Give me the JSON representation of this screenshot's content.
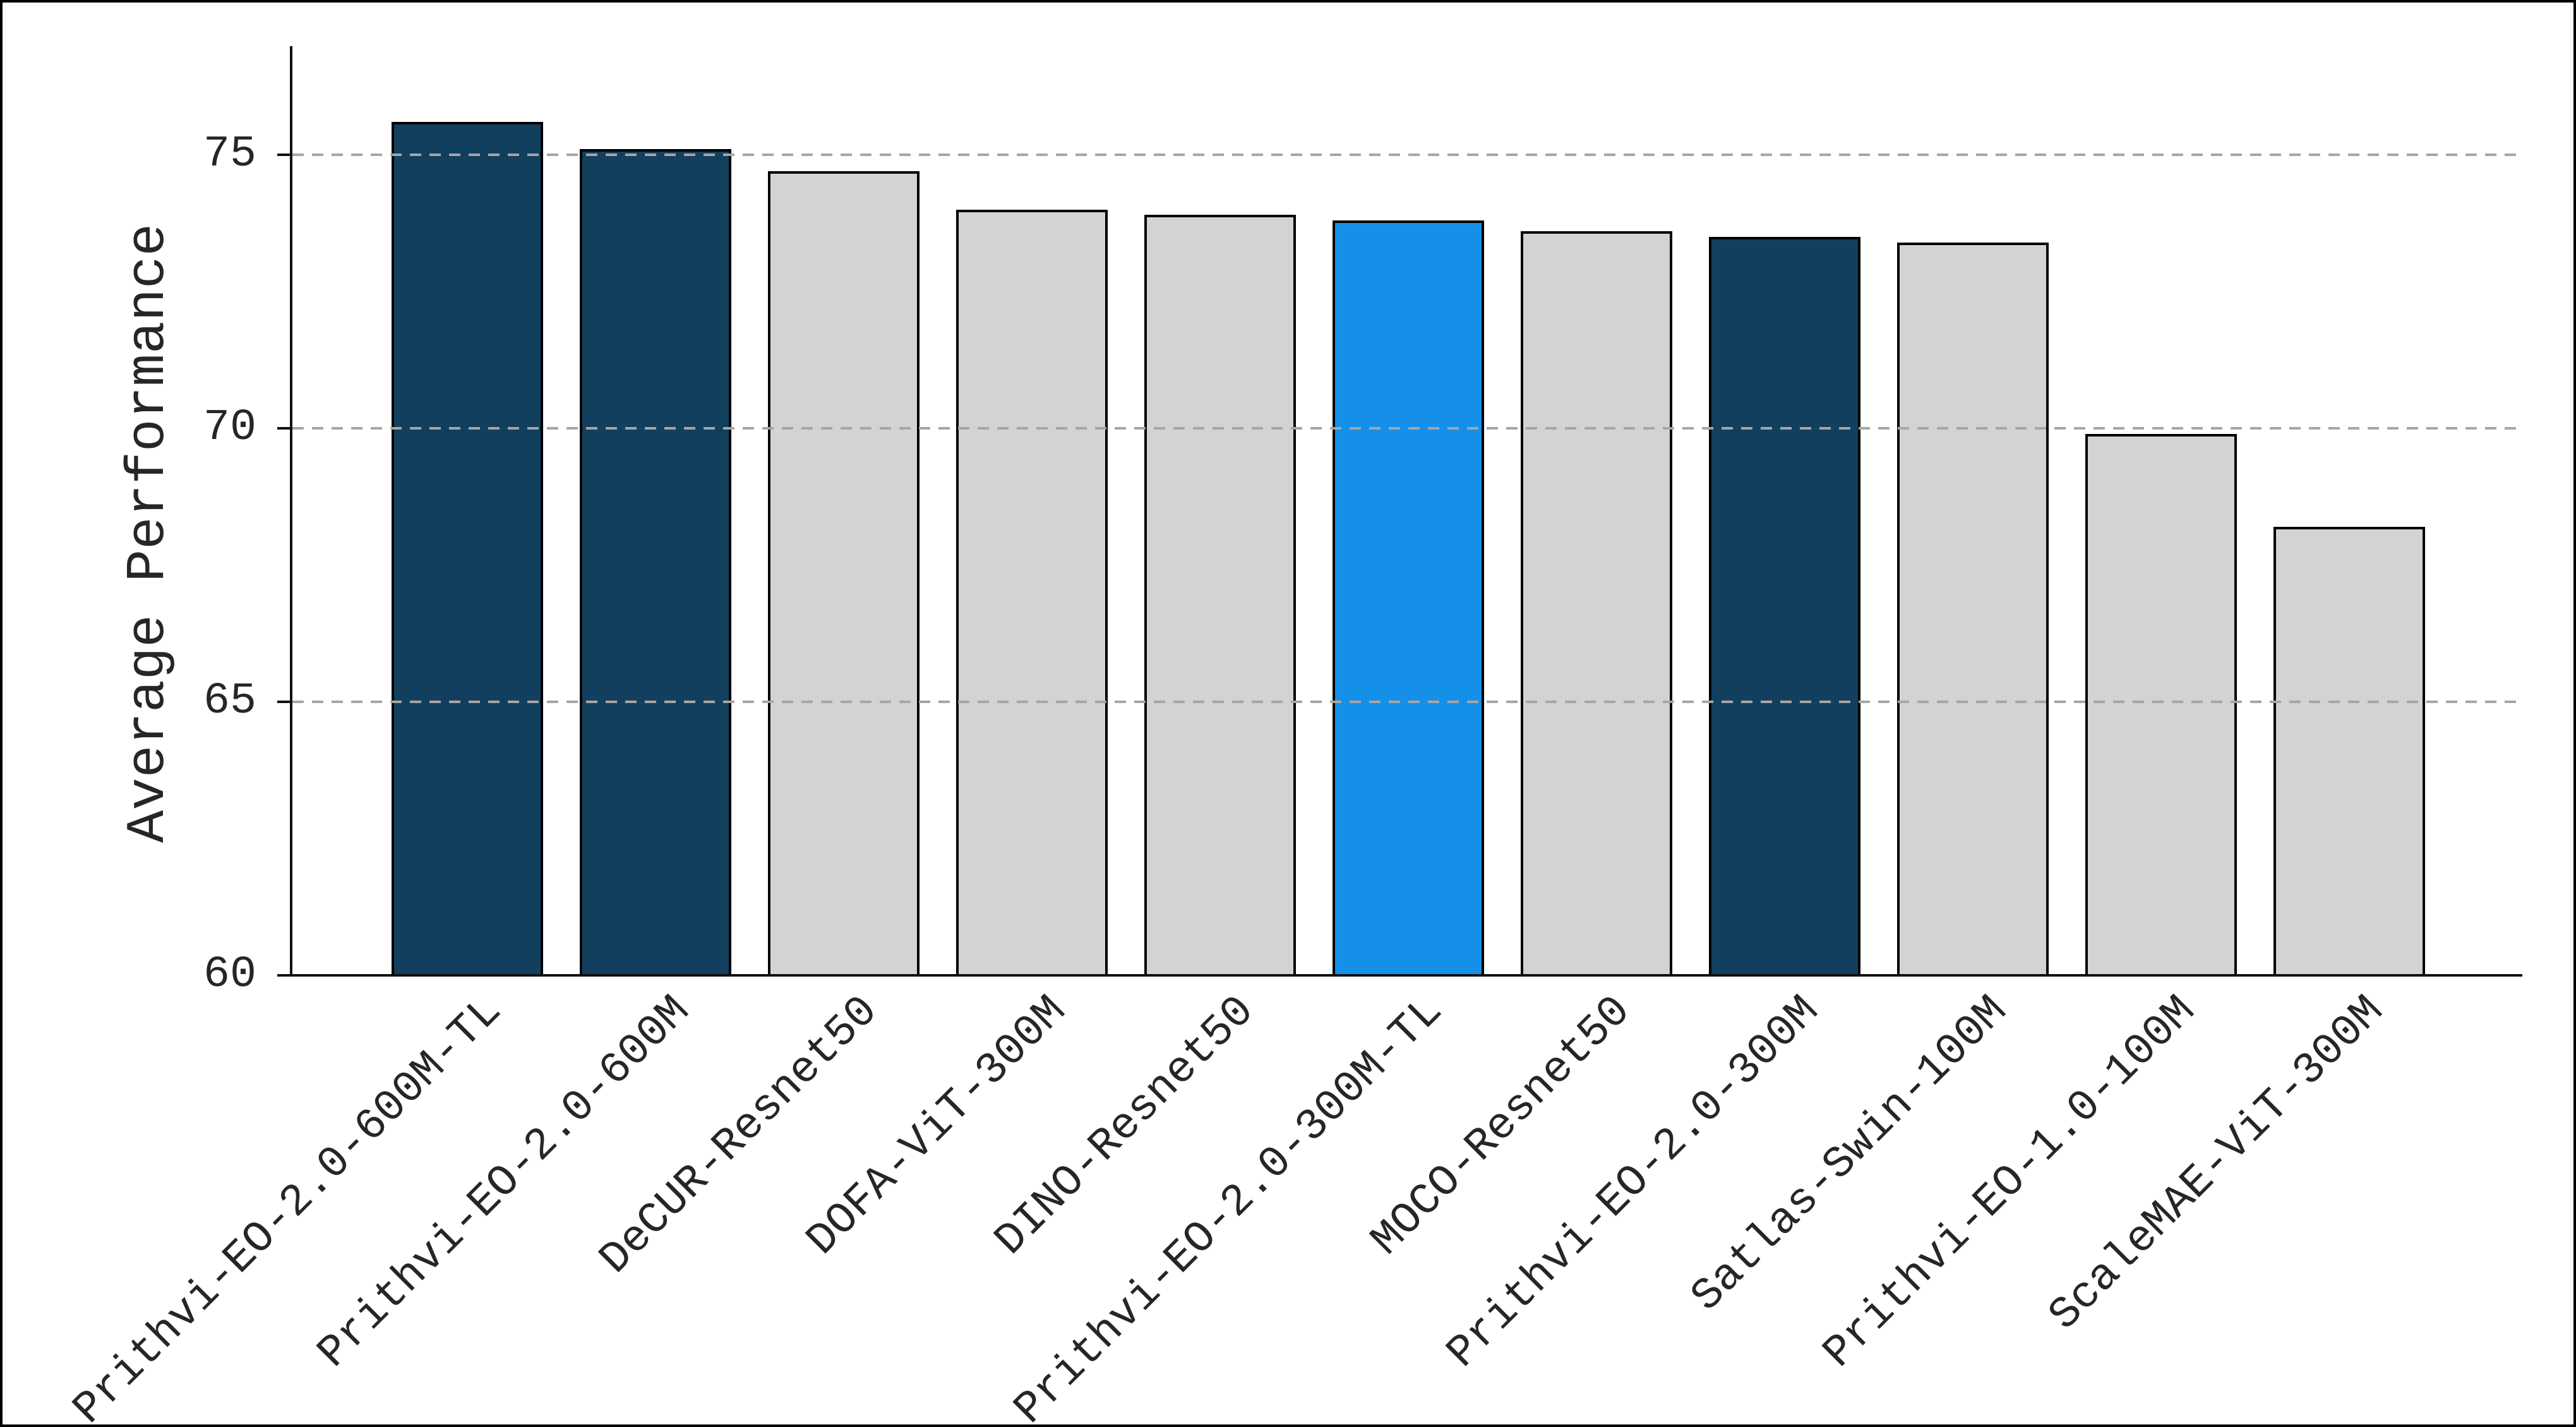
{
  "chart_data": {
    "type": "bar",
    "title": "",
    "xlabel": "",
    "ylabel": "Average Performance",
    "categories": [
      "Prithvi-EO-2.0-600M-TL",
      "Prithvi-EO-2.0-600M",
      "DeCUR-Resnet50",
      "DOFA-ViT-300M",
      "DINO-Resnet50",
      "Prithvi-EO-2.0-300M-TL",
      "MOCO-Resnet50",
      "Prithvi-EO-2.0-300M",
      "Satlas-Swin-100M",
      "Prithvi-EO-1.0-100M",
      "ScaleMAE-ViT-300M"
    ],
    "values": [
      75.6,
      75.1,
      74.7,
      74.0,
      73.9,
      73.8,
      73.6,
      73.5,
      73.4,
      69.9,
      68.2
    ],
    "bar_color_keys": [
      "navy",
      "navy",
      "gray",
      "gray",
      "gray",
      "blue",
      "gray",
      "navy",
      "gray",
      "gray",
      "gray"
    ],
    "yticks": [
      75,
      70,
      65,
      60
    ],
    "gridline_values": [
      75,
      70,
      65
    ],
    "ylim": [
      60,
      77.0
    ],
    "grid": "horizontal-dashed-over-bars",
    "legend_position": "none"
  },
  "colors": {
    "navy": "#123f5e",
    "blue": "#1590e8",
    "gray": "#d3d3d3",
    "bar_edge": "#000000",
    "grid": "#a6a6a6",
    "axis": "#111111",
    "text": "#262626",
    "background": "#ffffff",
    "frame_border": "#000000"
  }
}
